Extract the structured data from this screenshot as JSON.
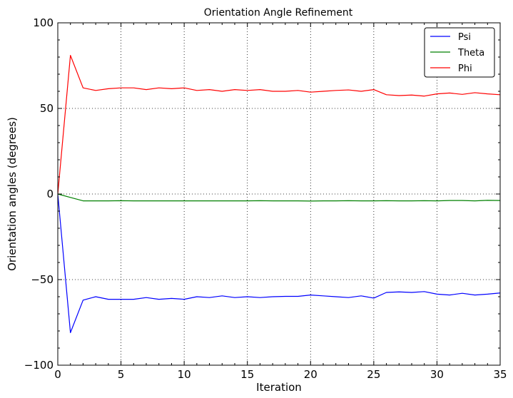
{
  "chart_data": {
    "type": "line",
    "title": "Orientation Angle Refinement",
    "xlabel": "Iteration",
    "ylabel": "Orientation angles (degrees)",
    "xlim": [
      0,
      35
    ],
    "ylim": [
      -100,
      100
    ],
    "xticks": [
      0,
      5,
      10,
      15,
      20,
      25,
      30,
      35
    ],
    "yticks": [
      -100,
      -50,
      0,
      50,
      100
    ],
    "ytick_labels": [
      "−100",
      "−50",
      "0",
      "50",
      "100"
    ],
    "grid": true,
    "legend_position": "top-right",
    "x": [
      0,
      1,
      2,
      3,
      4,
      5,
      6,
      7,
      8,
      9,
      10,
      11,
      12,
      13,
      14,
      15,
      16,
      17,
      18,
      19,
      20,
      21,
      22,
      23,
      24,
      25,
      26,
      27,
      28,
      29,
      30,
      31,
      32,
      33,
      34,
      35
    ],
    "series": [
      {
        "name": "Psi",
        "color": "#0000ff",
        "values": [
          0,
          -81,
          -62,
          -60,
          -61.5,
          -61.5,
          -61.5,
          -60.5,
          -61.5,
          -61,
          -61.5,
          -60,
          -60.5,
          -59.5,
          -60.5,
          -60,
          -60.5,
          -60,
          -59.8,
          -59.8,
          -59,
          -59.5,
          -60,
          -60.5,
          -59.5,
          -60.8,
          -57.5,
          -57.2,
          -57.5,
          -57,
          -58.5,
          -59,
          -58,
          -59,
          -58.5,
          -57.8
        ]
      },
      {
        "name": "Theta",
        "color": "#008000",
        "values": [
          0,
          -2,
          -4,
          -4,
          -4,
          -3.9,
          -4,
          -4,
          -4,
          -4,
          -4,
          -4,
          -4,
          -4,
          -4,
          -4,
          -3.9,
          -4,
          -4,
          -4,
          -4.1,
          -4,
          -4,
          -3.9,
          -4,
          -4,
          -3.9,
          -4,
          -4,
          -3.9,
          -4,
          -3.8,
          -3.8,
          -4,
          -3.7,
          -3.8
        ]
      },
      {
        "name": "Phi",
        "color": "#ff0000",
        "values": [
          0,
          81,
          62,
          60.5,
          61.5,
          62,
          62,
          61,
          62,
          61.5,
          62,
          60.5,
          61,
          60,
          61,
          60.5,
          61,
          60,
          60,
          60.5,
          59.5,
          60,
          60.5,
          60.8,
          60,
          61,
          58,
          57.5,
          57.8,
          57.2,
          58.5,
          59,
          58.2,
          59.2,
          58.5,
          58
        ]
      }
    ]
  }
}
